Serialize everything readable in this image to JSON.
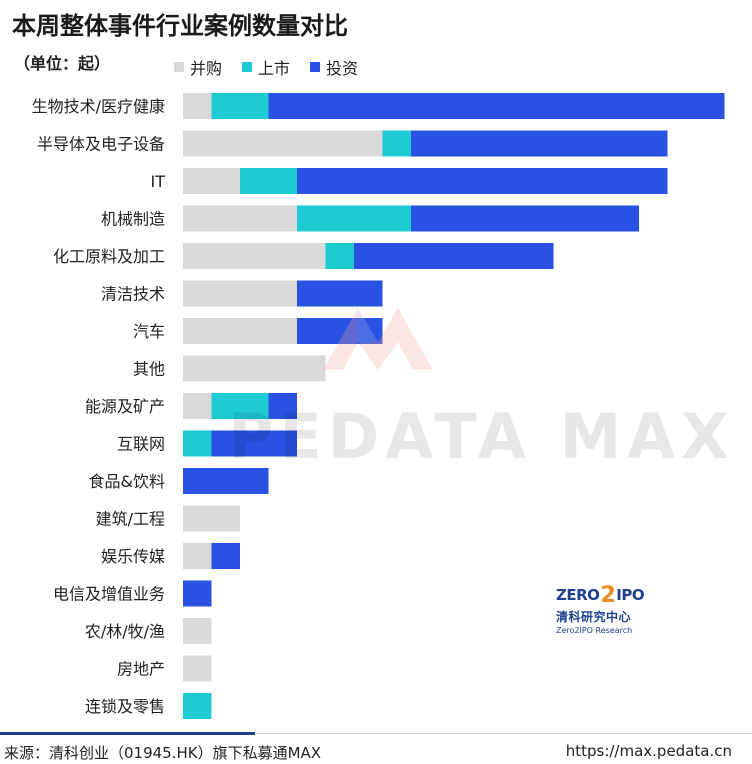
{
  "chart_data": {
    "type": "bar",
    "orientation": "horizontal",
    "stacked": true,
    "title": "本周整体事件行业案例数量对比",
    "unit_label": "（单位：起）",
    "legend_position": "top",
    "grid": false,
    "xlim": [
      0,
      19
    ],
    "categories": [
      "生物技术/医疗健康",
      "半导体及电子设备",
      "IT",
      "机械制造",
      "化工原料及加工",
      "清洁技术",
      "汽车",
      "其他",
      "能源及矿产",
      "互联网",
      "食品&饮料",
      "建筑/工程",
      "娱乐传媒",
      "电信及增值业务",
      "农/林/牧/渔",
      "房地产",
      "连锁及零售"
    ],
    "series": [
      {
        "name": "并购",
        "color": "#d9d9d9",
        "values": [
          1,
          7,
          2,
          4,
          5,
          4,
          4,
          5,
          1,
          0,
          0,
          2,
          1,
          0,
          1,
          1,
          0
        ]
      },
      {
        "name": "上市",
        "color": "#1fcbd3",
        "values": [
          2,
          1,
          2,
          4,
          1,
          0,
          0,
          0,
          2,
          1,
          0,
          0,
          0,
          0,
          0,
          0,
          1
        ]
      },
      {
        "name": "投资",
        "color": "#2952e3",
        "values": [
          16,
          9,
          13,
          8,
          7,
          3,
          3,
          0,
          1,
          3,
          3,
          0,
          1,
          1,
          0,
          0,
          0
        ]
      }
    ]
  },
  "watermark": "PEDATA MAX",
  "brand": {
    "logo_text_left": "ZERO",
    "logo_text_mid": "2",
    "logo_text_right": "IPO",
    "name_cn": "清科研究中心",
    "name_en": "Zero2IPO Research"
  },
  "footer": {
    "source": "来源：清科创业（01945.HK）旗下私募通MAX",
    "url": "https://max.pedata.cn"
  }
}
